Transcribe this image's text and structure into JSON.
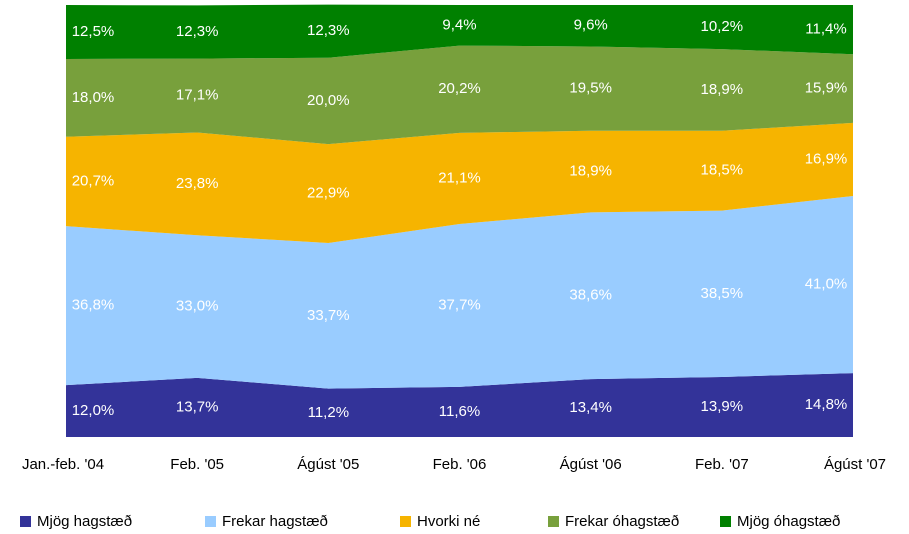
{
  "chart_data": {
    "type": "stacked_area",
    "categories": [
      "Jan.-feb. '04",
      "Feb. '05",
      "Ágúst '05",
      "Feb. '06",
      "Ágúst '06",
      "Feb. '07",
      "Ágúst '07"
    ],
    "ylim": [
      0,
      100
    ],
    "series": [
      {
        "name": "Mjög hagstæð",
        "color": "#333399",
        "values": [
          12.0,
          13.7,
          11.2,
          11.6,
          13.4,
          13.9,
          14.8
        ],
        "value_labels": [
          "12,0%",
          "13,7%",
          "11,2%",
          "11,6%",
          "13,4%",
          "13,9%",
          "14,8%"
        ]
      },
      {
        "name": "Frekar hagstæð",
        "color": "#99ccff",
        "values": [
          36.8,
          33.0,
          33.7,
          37.7,
          38.6,
          38.5,
          41.0
        ],
        "value_labels": [
          "36,8%",
          "33,0%",
          "33,7%",
          "37,7%",
          "38,6%",
          "38,5%",
          "41,0%"
        ]
      },
      {
        "name": "Hvorki né",
        "color": "#f6b400",
        "values": [
          20.7,
          23.8,
          22.9,
          21.1,
          18.9,
          18.5,
          16.9
        ],
        "value_labels": [
          "20,7%",
          "23,8%",
          "22,9%",
          "21,1%",
          "18,9%",
          "18,5%",
          "16,9%"
        ]
      },
      {
        "name": "Frekar óhagstæð",
        "color": "#78a03c",
        "values": [
          18.0,
          17.1,
          20.0,
          20.2,
          19.5,
          18.9,
          15.9
        ],
        "value_labels": [
          "18,0%",
          "17,1%",
          "20,0%",
          "20,2%",
          "19,5%",
          "18,9%",
          "15,9%"
        ]
      },
      {
        "name": "Mjög óhagstæð",
        "color": "#008000",
        "values": [
          12.5,
          12.3,
          12.3,
          9.4,
          9.6,
          10.2,
          11.4
        ],
        "value_labels": [
          "12,5%",
          "12,3%",
          "12,3%",
          "9,4%",
          "9,6%",
          "10,2%",
          "11,4%"
        ]
      }
    ]
  }
}
